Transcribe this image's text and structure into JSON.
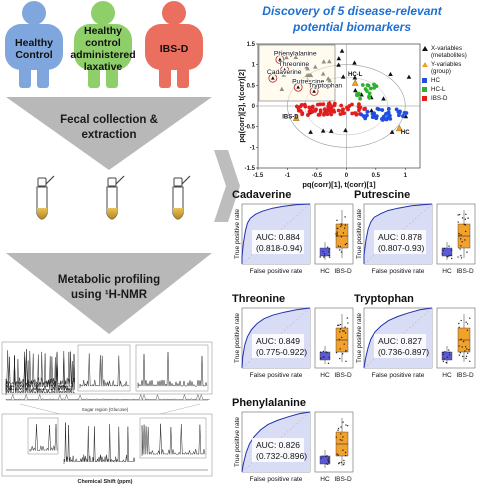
{
  "groups": [
    {
      "label": "Healthy\nControl",
      "color": "#7fa7dd"
    },
    {
      "label": "Healthy\ncontrol\nadministered\nlaxative",
      "color": "#8fcf6a"
    },
    {
      "label": "IBS-D",
      "color": "#ea6f5f"
    }
  ],
  "steps": {
    "collection": "Fecal collection &\nextraction",
    "profiling": "Metabolic profiling\nusing ¹H-NMR"
  },
  "nmr": {
    "sugar_label": "Sugar region (Glucose)",
    "xlabel": "Chemical Shift (ppm)"
  },
  "title": "Discovery of 5 disease-relevant\npotential biomarkers",
  "colors": {
    "title": "#1f6fd1",
    "arrow": "#b5b5b5",
    "hc": "#1f4ee0",
    "hcl": "#2fb02f",
    "ibsd": "#e01e1e",
    "yvar": "#f0a21e",
    "roc_fill": "#d9dcf5",
    "box_hc": "#5a5ad8",
    "box_ibsd": "#f2a12a"
  },
  "scatter": {
    "xlabel": "pq(corr)[1], t(corr)[1]",
    "ylabel": "pq(corr)[2], t(corr)[2]",
    "xticks": [
      "-1.5",
      "-1",
      "-0.5",
      "0",
      "0.5",
      "1"
    ],
    "yticks": [
      "1.5",
      "1",
      "0.5",
      "0",
      "-0.5",
      "-1",
      "-1.5"
    ],
    "xlim": [
      -1.5,
      1.25
    ],
    "ylim": [
      -1.5,
      1.5
    ],
    "legend": [
      {
        "label": "X-variables\n(metabolites)",
        "kind": "x"
      },
      {
        "label": "Y-variables\n(group)",
        "kind": "y"
      },
      {
        "label": "HC",
        "kind": "hc"
      },
      {
        "label": "HC-L",
        "kind": "hcl"
      },
      {
        "label": "IBS-D",
        "kind": "ibsd"
      }
    ],
    "group_labels": [
      {
        "text": "HC-L",
        "x": 0.15,
        "y": 0.72
      },
      {
        "text": "IBS-D",
        "x": -0.95,
        "y": -0.3
      },
      {
        "text": "HC",
        "x": 1.0,
        "y": -0.68
      }
    ],
    "biomarkers": [
      {
        "text": "Phenylalanine",
        "x": -1.23,
        "y": 1.22
      },
      {
        "text": "Threonine",
        "x": -1.15,
        "y": 0.97
      },
      {
        "text": "Putrescine",
        "x": -0.92,
        "y": 0.55
      },
      {
        "text": "Cadaverine",
        "x": -1.35,
        "y": 0.77
      },
      {
        "text": "Tryptophan",
        "x": -0.65,
        "y": 0.45
      }
    ]
  },
  "roc_panels": [
    {
      "name": "Cadaverine",
      "auc": "AUC: 0.884",
      "ci": "(0.818-0.94)"
    },
    {
      "name": "Putrescine",
      "auc": "AUC: 0.878",
      "ci": "(0.807-0.93)"
    },
    {
      "name": "Threonine",
      "auc": "AUC: 0.849",
      "ci": "(0.775-0.922)"
    },
    {
      "name": "Tryptophan",
      "auc": "AUC: 0.827",
      "ci": "(0.736-0.897)"
    },
    {
      "name": "Phenylalanine",
      "auc": "AUC: 0.826",
      "ci": "(0.732-0.896)"
    }
  ],
  "roc_axes": {
    "ylabel": "True positive rate",
    "xlabel": "False positive rate",
    "box_labels": [
      "HC",
      "IBS-D"
    ]
  }
}
